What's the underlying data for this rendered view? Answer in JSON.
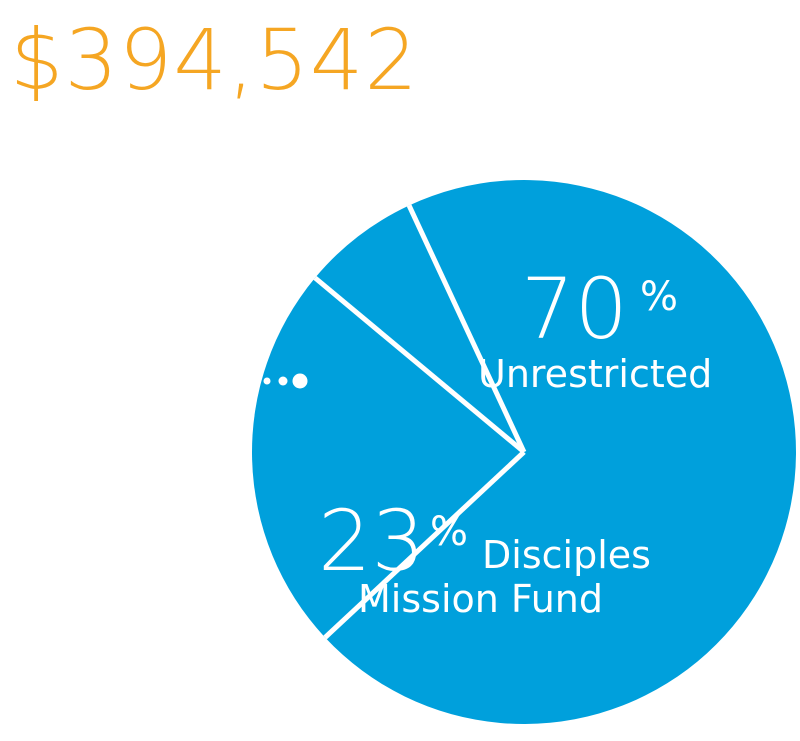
{
  "total_amount": "$394,542",
  "colors": {
    "total_text": "#f5a623",
    "pie_fill": "#00a0dc",
    "divider": "#ffffff",
    "label_text": "#ffffff"
  },
  "chart_data": {
    "type": "pie",
    "title": "$394,542",
    "slices": [
      {
        "label": "Unrestricted",
        "value": 70,
        "percent_text": "70",
        "suffix": "%"
      },
      {
        "label": "Disciples Mission Fund",
        "label_lines": [
          "Disciples",
          "Mission Fund"
        ],
        "value": 23,
        "percent_text": "23",
        "suffix": "%"
      },
      {
        "label": "",
        "value": 7,
        "percent_text": "",
        "suffix": ""
      }
    ],
    "unit": "%"
  }
}
